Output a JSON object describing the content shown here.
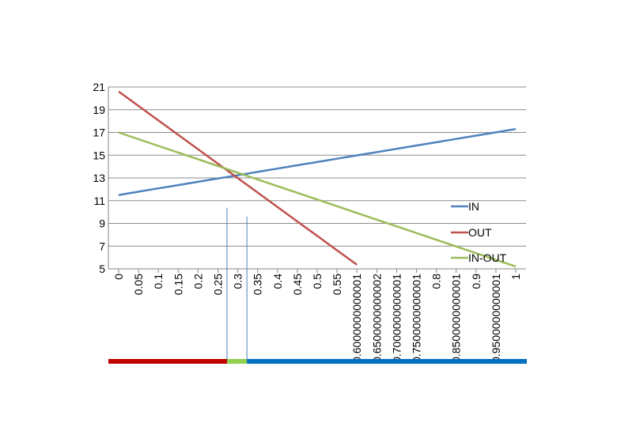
{
  "chart_data": {
    "type": "line",
    "title": "",
    "xlabel": "",
    "ylabel": "",
    "x": [
      0,
      0.05,
      0.1,
      0.15,
      0.2,
      0.25,
      0.3,
      0.35,
      0.4,
      0.45,
      0.5,
      0.55,
      0.6,
      0.65,
      0.7,
      0.75,
      0.8,
      0.85,
      0.9,
      0.95,
      1
    ],
    "x_tick_labels": [
      "0",
      "0.05",
      "0.1",
      "0.15",
      "0.2",
      "0.25",
      "0.3",
      "0.35",
      "0.4",
      "0.45",
      "0.5",
      "0.55",
      "0.6000000000001",
      "0.6500000000002",
      "0.7000000000001",
      "0.7500000000001",
      "0.8",
      "0.8500000000001",
      "0.9",
      "0.9500000000001",
      "1"
    ],
    "ylim": [
      5,
      21
    ],
    "y_ticks": [
      5,
      7,
      9,
      11,
      13,
      15,
      17,
      19,
      21
    ],
    "grid": true,
    "legend_position": "right",
    "series": [
      {
        "name": "IN",
        "color": "#4f81bd",
        "values": [
          11.5,
          11.79,
          12.08,
          12.37,
          12.66,
          12.95,
          13.24,
          13.53,
          13.82,
          14.11,
          14.4,
          14.69,
          14.98,
          15.27,
          15.56,
          15.85,
          16.14,
          16.43,
          16.72,
          17.01,
          17.3
        ]
      },
      {
        "name": "OUT",
        "color": "#c0504d",
        "values": [
          20.6,
          19.33,
          18.06,
          16.79,
          15.52,
          14.25,
          12.98,
          11.71,
          10.44,
          9.17,
          7.9,
          6.63,
          5.36,
          null,
          null,
          null,
          null,
          null,
          null,
          null,
          null
        ]
      },
      {
        "name": "IN-OUT",
        "color": "#9bbb59",
        "values": [
          17.0,
          16.41,
          15.82,
          15.23,
          14.64,
          14.05,
          13.46,
          12.87,
          12.28,
          11.69,
          11.1,
          10.51,
          9.92,
          9.33,
          8.74,
          8.15,
          7.56,
          6.97,
          6.38,
          5.79,
          5.2
        ]
      }
    ],
    "markers": [
      0.275,
      0.325
    ],
    "range_bar": [
      {
        "from": 0,
        "to": 0.275,
        "color": "#c00000"
      },
      {
        "from": 0.275,
        "to": 0.325,
        "color": "#92d050"
      },
      {
        "from": 0.325,
        "to": 1.03,
        "color": "#0070c0"
      }
    ]
  }
}
